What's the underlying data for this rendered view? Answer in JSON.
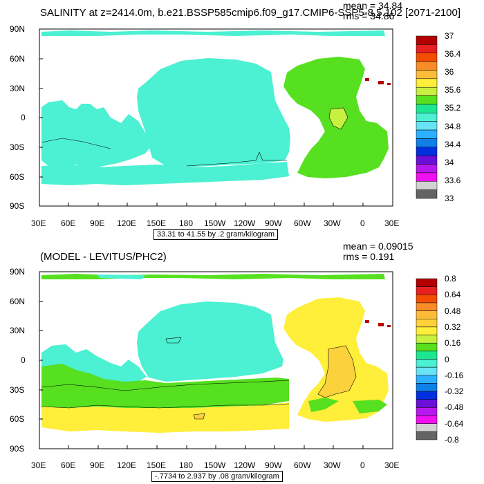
{
  "panels": [
    {
      "title": "SALINITY at z=2414.0m, b.e21.BSSP585cmip6.f09_g17.CMIP6-SSP5-8.5.102 [2071-2100]",
      "mean": "mean = 34.84",
      "rms": "rms = 34.86",
      "range_label": "33.31 to 41.55 by .2 gram/kilogram",
      "lat_labels": [
        "90N",
        "60N",
        "30N",
        "0",
        "30S",
        "60S",
        "90S"
      ],
      "lon_labels": [
        "30E",
        "60E",
        "90E",
        "120E",
        "150E",
        "180",
        "150W",
        "120W",
        "90W",
        "60W",
        "30W",
        "0",
        "30E"
      ],
      "colorbar_labels": [
        "37",
        "36.4",
        "36",
        "35.6",
        "35.2",
        "34.8",
        "34.4",
        "34",
        "33.6",
        "33"
      ],
      "colorbar_colors": [
        "#b40000",
        "#e82020",
        "#f54d00",
        "#fa8c28",
        "#fcbc3a",
        "#ffee3a",
        "#c8f040",
        "#56e020",
        "#1de690",
        "#4cf0d2",
        "#68e4f4",
        "#2cb0ff",
        "#0f80e8",
        "#0030e0",
        "#6a10d8",
        "#b818f0",
        "#f010f0",
        "#d2d2d2",
        "#646464"
      ]
    },
    {
      "title": "(MODEL - LEVITUS/PHC2)",
      "mean": "mean = 0.09015",
      "rms": "rms = 0.191",
      "range_label": "-.7734 to 2.937 by .08 gram/kilogram",
      "lat_labels": [
        "90N",
        "60N",
        "30N",
        "0",
        "30S",
        "60S",
        "90S"
      ],
      "lon_labels": [
        "30E",
        "60E",
        "90E",
        "120E",
        "150E",
        "180",
        "150W",
        "120W",
        "90W",
        "60W",
        "30W",
        "0",
        "30E"
      ],
      "colorbar_labels": [
        "0.8",
        "0.64",
        "0.48",
        "0.32",
        "0.16",
        "0",
        "-0.16",
        "-0.32",
        "-0.48",
        "-0.64",
        "-0.8"
      ],
      "colorbar_colors": [
        "#b40000",
        "#e82020",
        "#f54d00",
        "#fa8c28",
        "#fcbc3a",
        "#ffd23c",
        "#ffee3a",
        "#c8f040",
        "#56e020",
        "#1de690",
        "#4cf0d2",
        "#68e4f4",
        "#2cb0ff",
        "#0f80e8",
        "#0030e0",
        "#6a10d8",
        "#b818f0",
        "#f010f0",
        "#d2d2d2",
        "#646464"
      ]
    }
  ],
  "chart_data": [
    {
      "type": "heatmap",
      "title": "SALINITY at z=2414.0m, b.e21.BSSP585cmip6.f09_g17.CMIP6-SSP5-8.5.102 [2071-2100]",
      "xlabel": "",
      "ylabel": "",
      "x_ticks": [
        "30E",
        "60E",
        "90E",
        "120E",
        "150E",
        "180",
        "150W",
        "120W",
        "90W",
        "60W",
        "30W",
        "0",
        "30E"
      ],
      "y_ticks": [
        "90N",
        "60N",
        "30N",
        "0",
        "30S",
        "60S",
        "90S"
      ],
      "colorbar_levels": [
        37,
        36.4,
        36,
        35.6,
        35.2,
        34.8,
        34.4,
        34,
        33.6,
        33
      ],
      "mean": 34.84,
      "rms": 34.86,
      "range": "33.31 to 41.55 by .2 gram/kilogram",
      "fill_colors": {
        "ocean_main": "#4cf0d2",
        "atlantic": "#56e020",
        "atlantic_core": "#c8f040",
        "land": "#ffffff",
        "med_outflow": "#b40000"
      },
      "legend": "right"
    },
    {
      "type": "heatmap",
      "title": "(MODEL - LEVITUS/PHC2)",
      "xlabel": "",
      "ylabel": "",
      "x_ticks": [
        "30E",
        "60E",
        "90E",
        "120E",
        "150E",
        "180",
        "150W",
        "120W",
        "90W",
        "60W",
        "30W",
        "0",
        "30E"
      ],
      "y_ticks": [
        "90N",
        "60N",
        "30N",
        "0",
        "30S",
        "60S",
        "90S"
      ],
      "colorbar_levels": [
        0.8,
        0.64,
        0.48,
        0.32,
        0.16,
        0,
        -0.16,
        -0.32,
        -0.48,
        -0.64,
        -0.8
      ],
      "mean": 0.09015,
      "rms": 0.191,
      "range": "-.7734 to 2.937 by .08 gram/kilogram",
      "fill_colors": {
        "north_pacific": "#4cf0d2",
        "south_band": "#56e020",
        "southern_ocean": "#ffee3a",
        "atlantic": "#ffee3a",
        "atlantic_core": "#fcd23c",
        "land": "#ffffff",
        "med_outflow": "#b40000"
      },
      "legend": "right"
    }
  ]
}
